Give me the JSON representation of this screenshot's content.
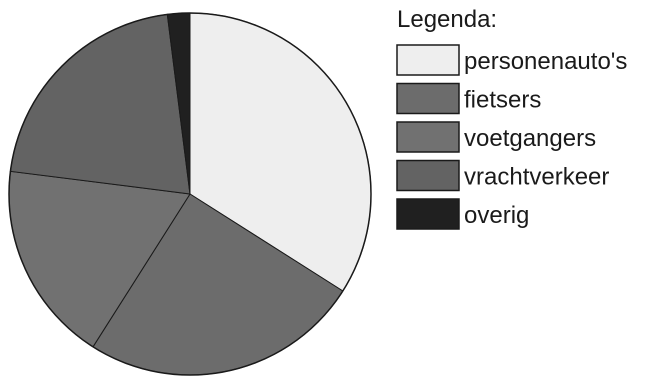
{
  "chart_data": {
    "type": "pie",
    "legend_title": "Legenda:",
    "legend_position": "right",
    "start": "12 o'clock",
    "direction": "clockwise",
    "slices": [
      {
        "label": "personenauto's",
        "value": 34,
        "color": "#eeeeee"
      },
      {
        "label": "fietsers",
        "value": 25,
        "color": "#6c6c6c"
      },
      {
        "label": "voetgangers",
        "value": 18,
        "color": "#717171"
      },
      {
        "label": "vrachtverkeer",
        "value": 21,
        "color": "#636363"
      },
      {
        "label": "overig",
        "value": 2,
        "color": "#202020"
      }
    ]
  }
}
